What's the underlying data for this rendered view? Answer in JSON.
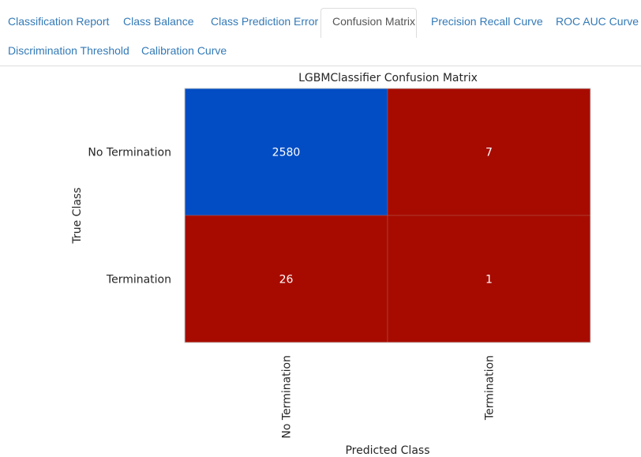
{
  "tabs": [
    {
      "label": "Classification Report",
      "active": false
    },
    {
      "label": "Class Balance",
      "active": false
    },
    {
      "label": "Class Prediction Error",
      "active": false
    },
    {
      "label": "Confusion Matrix",
      "active": true
    },
    {
      "label": "Precision Recall Curve",
      "active": false
    },
    {
      "label": "ROC AUC Curve",
      "active": false
    },
    {
      "label": "Discrimination Threshold",
      "active": false
    },
    {
      "label": "Calibration Curve",
      "active": false
    }
  ],
  "colors": {
    "tab_link": "#337ab7",
    "tab_active_text": "#555555",
    "cell_high": "#024dc4",
    "cell_low": "#a70b00",
    "cell_text": "#ffffff"
  },
  "chart_data": {
    "type": "heatmap",
    "title": "LGBMClassifier Confusion Matrix",
    "xlabel": "Predicted Class",
    "ylabel": "True Class",
    "x_categories": [
      "No Termination",
      "Termination"
    ],
    "y_categories": [
      "No Termination",
      "Termination"
    ],
    "values": [
      [
        2580,
        7
      ],
      [
        26,
        1
      ]
    ]
  }
}
